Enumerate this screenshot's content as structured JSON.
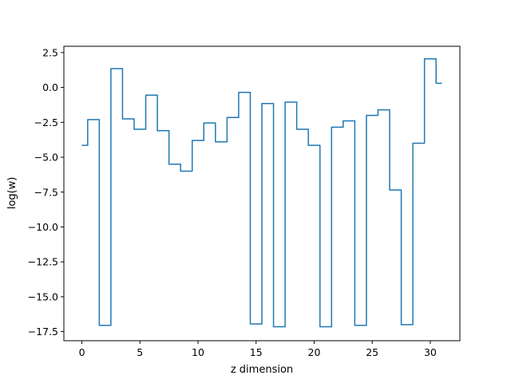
{
  "chart_data": {
    "type": "line",
    "drawstyle": "steps-mid",
    "title": "",
    "xlabel": "z dimension",
    "ylabel": "log(w)",
    "xlim": [
      -1.55,
      32.55
    ],
    "ylim": [
      -18.15,
      2.95
    ],
    "xticks": [
      0,
      5,
      10,
      15,
      20,
      25,
      30
    ],
    "yticks": [
      2.5,
      0.0,
      -2.5,
      -5.0,
      -7.5,
      -10.0,
      -12.5,
      -15.0,
      -17.5
    ],
    "ytick_labels": [
      "2.5",
      "0.0",
      "−2.5",
      "−5.0",
      "−7.5",
      "−10.0",
      "−12.5",
      "−15.0",
      "−17.5"
    ],
    "grid": false,
    "series": [
      {
        "color": "#1f77b4",
        "x": [
          0,
          1,
          2,
          3,
          4,
          5,
          6,
          7,
          8,
          9,
          10,
          11,
          12,
          13,
          14,
          15,
          16,
          17,
          18,
          19,
          20,
          21,
          22,
          23,
          24,
          25,
          26,
          27,
          28,
          29,
          30,
          31
        ],
        "y": [
          -4.15,
          -2.3,
          -17.05,
          1.35,
          -2.25,
          -3.0,
          -0.55,
          -3.1,
          -5.5,
          -6.0,
          -3.8,
          -2.55,
          -3.9,
          -2.15,
          -0.35,
          -16.95,
          -1.15,
          -17.15,
          -1.05,
          -3.0,
          -4.15,
          -17.15,
          -2.85,
          -2.4,
          -17.05,
          -2.0,
          -1.6,
          -7.35,
          -17.0,
          -4.0,
          2.05,
          0.3
        ]
      }
    ]
  }
}
